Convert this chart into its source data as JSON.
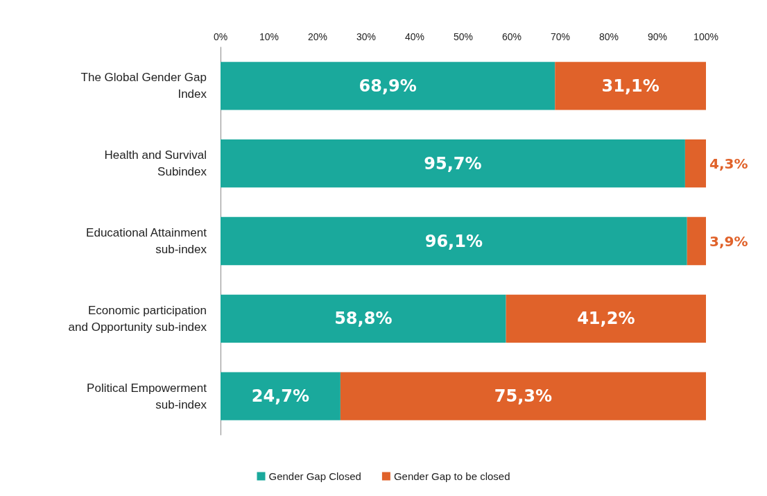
{
  "chart_data": {
    "type": "bar",
    "orientation": "horizontal",
    "stacked": true,
    "categories": [
      "The Global Gender Gap\nIndex",
      "Health and Survival\nSubindex",
      "Educational Attainment\nsub-index",
      "Economic participation\nand Opportunity sub-index",
      "Political Empowerment\nsub-index"
    ],
    "series": [
      {
        "name": "Gender Gap Closed",
        "color": "#1aa99c",
        "values": [
          68.9,
          95.7,
          96.1,
          58.8,
          24.7
        ],
        "value_labels": [
          "68,9%",
          "95,7%",
          "96,1%",
          "58,8%",
          "24,7%"
        ]
      },
      {
        "name": "Gender Gap to be closed",
        "color": "#e0622a",
        "values": [
          31.1,
          4.3,
          3.9,
          41.2,
          75.3
        ],
        "value_labels": [
          "31,1%",
          "4,3%",
          "3,9%",
          "41,2%",
          "75,3%"
        ]
      }
    ],
    "xlim": [
      0,
      100
    ],
    "xticks": [
      {
        "value": 0,
        "label": "0%"
      },
      {
        "value": 10,
        "label": "10%"
      },
      {
        "value": 20,
        "label": "20%"
      },
      {
        "value": 30,
        "label": "30%"
      },
      {
        "value": 40,
        "label": "40%"
      },
      {
        "value": 50,
        "label": "50%"
      },
      {
        "value": 60,
        "label": "60%"
      },
      {
        "value": 70,
        "label": "70%"
      },
      {
        "value": 80,
        "label": "80%"
      },
      {
        "value": 90,
        "label": "90%"
      },
      {
        "value": 100,
        "label": "100%"
      }
    ],
    "grid": false,
    "legend": "bottom"
  }
}
